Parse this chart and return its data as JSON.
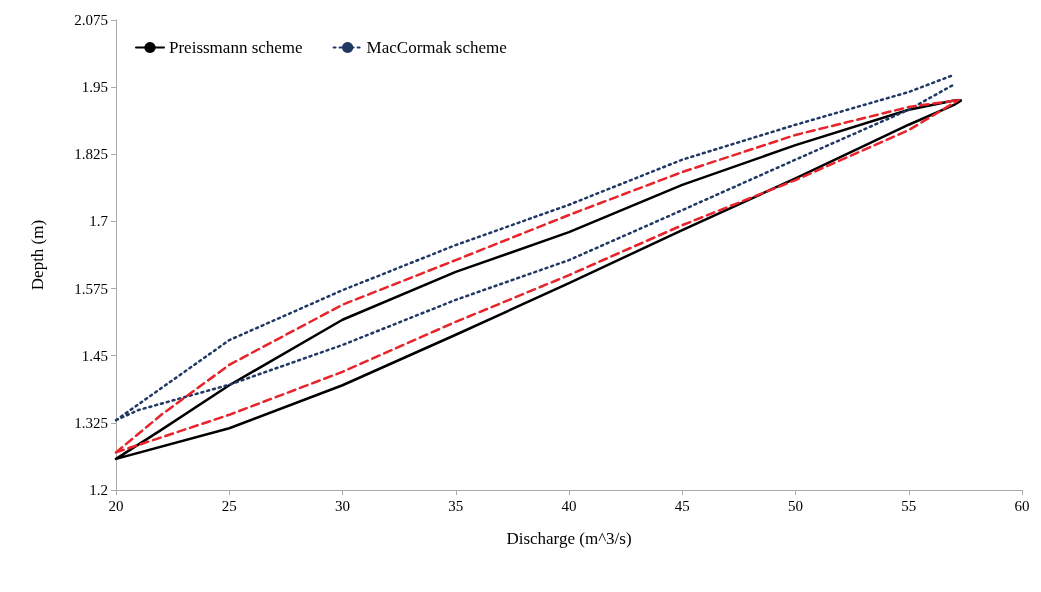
{
  "chart_data": {
    "type": "line",
    "xlabel": "Discharge (m^3/s)",
    "ylabel": "Depth (m)",
    "xlim": [
      20,
      60
    ],
    "xticks": [
      20,
      25,
      30,
      35,
      40,
      45,
      50,
      55,
      60
    ],
    "ylim": [
      1.2,
      2.075
    ],
    "yticks": [
      1.2,
      1.325,
      1.45,
      1.575,
      1.7,
      1.825,
      1.95,
      2.075
    ],
    "grid": false,
    "legend": "top left",
    "marker": "none",
    "series": [
      {
        "name": "Preissmann scheme",
        "color": "#000000",
        "line_style": "solid",
        "x": [
          20,
          25,
          30,
          35,
          40,
          45,
          50,
          55,
          57,
          57.3,
          null,
          20,
          22,
          25,
          30,
          35,
          40,
          45,
          50,
          55,
          57,
          57.3
        ],
        "values": [
          1.258,
          1.315,
          1.395,
          1.489,
          1.585,
          1.684,
          1.78,
          1.88,
          1.917,
          1.925,
          null,
          1.258,
          1.312,
          1.395,
          1.517,
          1.606,
          1.68,
          1.768,
          1.842,
          1.908,
          1.925,
          1.925
        ]
      },
      {
        "name": "MacCormak scheme",
        "color": "#1f3864",
        "line_style": "dotted",
        "x": [
          20,
          21,
          25,
          30,
          35,
          40,
          45,
          50,
          55,
          57,
          null,
          20,
          25,
          30,
          35,
          40,
          45,
          50,
          55,
          57
        ],
        "values": [
          1.33,
          1.349,
          1.396,
          1.47,
          1.554,
          1.628,
          1.721,
          1.815,
          1.908,
          1.955,
          null,
          1.33,
          1.479,
          1.572,
          1.656,
          1.731,
          1.815,
          1.88,
          1.941,
          1.973
        ]
      },
      {
        "color": "#e8232a",
        "line_style": "dashed",
        "x": [
          20,
          25,
          30,
          35,
          40,
          45,
          50,
          55,
          57.2,
          null,
          20,
          22,
          25,
          30,
          35,
          40,
          45,
          50,
          55,
          57.2
        ],
        "values": [
          1.27,
          1.34,
          1.42,
          1.513,
          1.6,
          1.693,
          1.777,
          1.87,
          1.926,
          null,
          1.27,
          1.34,
          1.433,
          1.545,
          1.628,
          1.712,
          1.792,
          1.861,
          1.913,
          1.926
        ]
      }
    ]
  }
}
